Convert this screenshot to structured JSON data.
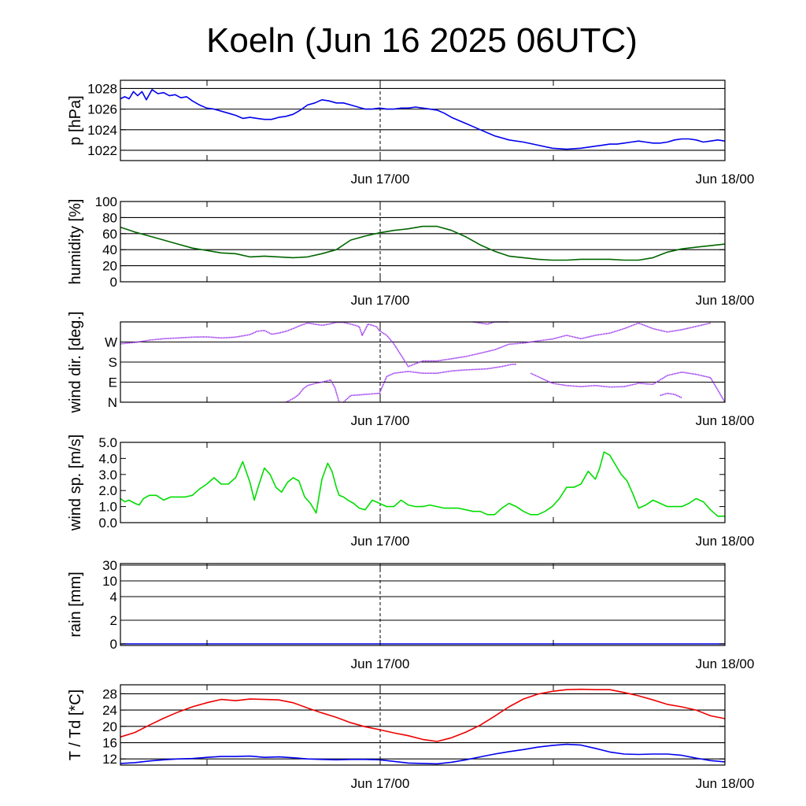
{
  "title": "Koeln (Jun 16 2025 06UTC)",
  "x_ticks": [
    "Jun 17/00",
    "Jun 18/00"
  ],
  "chart_data": [
    {
      "type": "line",
      "ylabel": "p [hPa]",
      "ylim": [
        1021,
        1028.8
      ],
      "ticks": [
        1022,
        1024,
        1026,
        1028
      ],
      "tick_labels": [
        "1022",
        "1024",
        "1026",
        "1028"
      ],
      "grid": [
        1022,
        1024,
        1026,
        1028
      ],
      "xlim": [
        0,
        42
      ],
      "series": [
        {
          "color": "#0000ee",
          "x": [
            0,
            0.3,
            0.6,
            0.9,
            1.2,
            1.5,
            1.8,
            2.2,
            2.6,
            3,
            3.4,
            3.8,
            4.2,
            4.6,
            5,
            5.5,
            6,
            6.5,
            7,
            7.5,
            8,
            8.5,
            9,
            9.5,
            10,
            10.5,
            11,
            11.5,
            12,
            12.5,
            13,
            13.5,
            14,
            14.5,
            15,
            15.5,
            16,
            16.5,
            17,
            17.5,
            18,
            18.5,
            19,
            19.5,
            20,
            20.5,
            21,
            21.5,
            22,
            22.5,
            23,
            23.5,
            24,
            24.5,
            25,
            26,
            27,
            28,
            29,
            30,
            31,
            32,
            33,
            33.5,
            34,
            34.5,
            35,
            35.5,
            36,
            36.5,
            37,
            37.5,
            38,
            38.5,
            39,
            39.5,
            40,
            40.5,
            41,
            41.5,
            42
          ],
          "values": [
            1027.0,
            1027.2,
            1027.0,
            1027.7,
            1027.3,
            1027.7,
            1026.9,
            1027.9,
            1027.5,
            1027.6,
            1027.3,
            1027.4,
            1027.1,
            1027.2,
            1026.8,
            1026.4,
            1026.1,
            1026.0,
            1025.8,
            1025.6,
            1025.4,
            1025.1,
            1025.2,
            1025.1,
            1025.0,
            1025.0,
            1025.2,
            1025.3,
            1025.5,
            1025.9,
            1026.4,
            1026.6,
            1026.9,
            1026.8,
            1026.6,
            1026.6,
            1026.4,
            1026.2,
            1026.0,
            1026.0,
            1026.1,
            1026.0,
            1026.0,
            1026.1,
            1026.1,
            1026.2,
            1026.1,
            1026.0,
            1025.9,
            1025.6,
            1025.2,
            1024.9,
            1024.6,
            1024.3,
            1024.0,
            1023.4,
            1023.0,
            1022.8,
            1022.5,
            1022.2,
            1022.1,
            1022.2,
            1022.4,
            1022.5,
            1022.6,
            1022.6,
            1022.7,
            1022.8,
            1022.9,
            1022.8,
            1022.7,
            1022.7,
            1022.8,
            1023.0,
            1023.1,
            1023.1,
            1023.0,
            1022.8,
            1022.9,
            1023.0,
            1022.9
          ]
        }
      ]
    },
    {
      "type": "line",
      "ylabel": "humidity [%]",
      "ylim": [
        0,
        100
      ],
      "ticks": [
        0,
        20,
        40,
        60,
        80,
        100
      ],
      "tick_labels": [
        "0",
        "20",
        "40",
        "60",
        "80",
        "100"
      ],
      "grid": [
        20,
        40,
        60,
        80
      ],
      "xlim": [
        0,
        42
      ],
      "series": [
        {
          "color": "#006600",
          "x": [
            0,
            1,
            2,
            3,
            4,
            5,
            6,
            7,
            8,
            9,
            10,
            11,
            12,
            13,
            14,
            15,
            16,
            17,
            18,
            19,
            20,
            21,
            22,
            23,
            24,
            25,
            26,
            27,
            28,
            29,
            30,
            31,
            32,
            33,
            34,
            35,
            36,
            37,
            38,
            39,
            40,
            41,
            42
          ],
          "values": [
            68,
            62,
            57,
            52,
            47,
            42,
            39,
            36,
            35,
            31,
            32,
            31,
            30,
            31,
            35,
            40,
            52,
            57,
            61,
            64,
            66,
            69,
            69,
            64,
            56,
            46,
            38,
            32,
            30,
            28,
            27,
            27,
            28,
            28,
            28,
            27,
            27,
            30,
            37,
            41,
            43,
            45,
            47
          ]
        }
      ]
    },
    {
      "type": "scatter",
      "ylabel": "wind dir. [deg.]",
      "ylim": [
        0,
        360
      ],
      "ticks": [
        0,
        90,
        180,
        270
      ],
      "tick_labels": [
        "N",
        "E",
        "S",
        "W"
      ],
      "grid": [
        90,
        180,
        270
      ],
      "xlim": [
        0,
        42
      ],
      "series": [
        {
          "color": "#9933ee",
          "segments": [
            {
              "x": [
                0,
                1,
                2,
                3,
                4,
                5,
                6,
                7,
                8,
                9,
                9.5,
                10,
                10.5,
                11,
                11.5,
                12,
                12.5,
                13,
                13.5,
                14,
                14.5,
                15,
                15.5,
                16,
                16.3,
                16.6,
                16.8,
                17,
                17.2,
                17.5,
                17.8,
                18,
                18.5,
                19,
                20,
                21,
                22,
                23,
                24,
                25,
                26,
                27,
                28,
                29,
                30,
                31,
                32,
                33,
                34,
                35,
                36,
                37,
                38,
                39,
                40,
                41
              ],
              "values": [
                262,
                268,
                278,
                285,
                288,
                292,
                293,
                288,
                292,
                303,
                318,
                322,
                305,
                310,
                318,
                330,
                344,
                355,
                350,
                345,
                350,
                358,
                358,
                350,
                345,
                338,
                300,
                325,
                350,
                345,
                338,
                320,
                300,
                262,
                160,
                185,
                185,
                195,
                205,
                220,
                235,
                260,
                265,
                275,
                283,
                300,
                285,
                300,
                310,
                330,
                355,
                330,
                315,
                325,
                340,
                355
              ]
            },
            {
              "x": [
                11.5,
                11.8,
                12.1,
                12.4,
                12.7,
                13.0,
                13.3,
                13.6,
                14.0,
                14.3,
                14.6,
                14.9,
                15.2
              ],
              "values": [
                0,
                10,
                20,
                35,
                60,
                75,
                80,
                85,
                90,
                95,
                100,
                65,
                0
              ]
            },
            {
              "x": [
                15.5,
                16,
                17,
                18,
                18.5,
                19,
                20,
                21,
                22,
                23,
                24,
                25,
                25.5,
                26,
                26.5,
                27.2,
                27.5
              ],
              "values": [
                0,
                30,
                35,
                40,
                115,
                130,
                138,
                130,
                130,
                140,
                145,
                148,
                150,
                155,
                160,
                170,
                170
              ]
            },
            {
              "x": [
                28.5,
                29,
                30,
                31,
                32,
                33,
                34,
                35,
                36,
                37,
                38,
                39,
                40,
                41,
                42
              ],
              "values": [
                130,
                115,
                85,
                75,
                70,
                75,
                68,
                70,
                85,
                80,
                120,
                135,
                125,
                110,
                0
              ]
            },
            {
              "x": [
                24.5,
                25,
                25.5,
                26,
                27
              ],
              "values": [
                360,
                355,
                350,
                360,
                360
              ]
            },
            {
              "x": [
                37.5,
                38,
                38.5,
                39
              ],
              "values": [
                30,
                40,
                35,
                20
              ]
            }
          ]
        }
      ]
    },
    {
      "type": "line",
      "ylabel": "wind sp. [m/s]",
      "ylim": [
        0,
        5
      ],
      "ticks": [
        0,
        1,
        2,
        3,
        4,
        5
      ],
      "tick_labels": [
        "0.0",
        "1.0",
        "2.0",
        "3.0",
        "4.0",
        "5.0"
      ],
      "grid": [],
      "xlim": [
        0,
        42
      ],
      "series": [
        {
          "color": "#00dd00",
          "x": [
            0,
            0.3,
            0.6,
            1,
            1.3,
            1.6,
            2,
            2.5,
            3,
            3.5,
            4,
            4.5,
            5,
            5.5,
            6,
            6.5,
            7,
            7.5,
            8,
            8.5,
            9,
            9.3,
            9.6,
            10,
            10.4,
            10.8,
            11.2,
            11.6,
            12,
            12.4,
            12.8,
            13.2,
            13.6,
            14,
            14.4,
            14.7,
            15,
            15.2,
            15.5,
            15.8,
            16.2,
            16.6,
            17,
            17.5,
            18,
            18.5,
            19,
            19.5,
            20,
            20.5,
            21,
            21.5,
            22,
            22.5,
            23,
            23.5,
            24,
            24.5,
            25,
            25.5,
            26,
            26.5,
            27,
            27.5,
            28,
            28.5,
            29,
            29.5,
            30,
            30.5,
            31,
            31.5,
            32,
            32.5,
            33,
            33.3,
            33.6,
            34,
            34.4,
            34.8,
            35.2,
            35.6,
            36,
            36.5,
            37,
            37.5,
            38,
            38.5,
            39,
            39.5,
            40,
            40.5,
            41,
            41.5,
            42
          ],
          "values": [
            1.5,
            1.3,
            1.4,
            1.2,
            1.1,
            1.5,
            1.7,
            1.7,
            1.4,
            1.6,
            1.6,
            1.6,
            1.7,
            2.1,
            2.4,
            2.8,
            2.4,
            2.4,
            2.8,
            3.8,
            2.5,
            1.4,
            2.3,
            3.4,
            3.0,
            2.2,
            1.9,
            2.5,
            2.8,
            2.6,
            1.6,
            1.2,
            0.6,
            2.7,
            3.7,
            3.2,
            2.2,
            1.7,
            1.6,
            1.4,
            1.2,
            0.9,
            0.8,
            1.4,
            1.2,
            1.0,
            1.0,
            1.4,
            1.1,
            1.0,
            1.0,
            1.1,
            1.0,
            0.9,
            0.9,
            0.9,
            0.8,
            0.7,
            0.7,
            0.5,
            0.5,
            0.9,
            1.2,
            1.0,
            0.7,
            0.5,
            0.5,
            0.7,
            1.0,
            1.5,
            2.2,
            2.2,
            2.4,
            3.2,
            2.7,
            3.4,
            4.4,
            4.2,
            3.6,
            3.0,
            2.6,
            1.8,
            0.9,
            1.1,
            1.4,
            1.2,
            1.0,
            1.0,
            1.0,
            1.2,
            1.5,
            1.3,
            0.8,
            0.4,
            0.4
          ]
        }
      ]
    },
    {
      "type": "line",
      "ylabel": "rain [mm]",
      "ylim": [
        0,
        30
      ],
      "ticks": [
        0,
        2,
        4,
        10,
        30
      ],
      "tick_labels": [
        "0",
        "2",
        "4",
        "10",
        "30"
      ],
      "grid": [
        0,
        2,
        4,
        10,
        30
      ],
      "xlim": [
        0,
        42
      ],
      "series": [
        {
          "color": "#0000ee",
          "x": [
            0,
            42
          ],
          "values": [
            0,
            0
          ]
        }
      ]
    },
    {
      "type": "line",
      "ylabel": "T / Td [*C]",
      "ylim": [
        10.5,
        30.2
      ],
      "ticks": [
        12,
        16,
        20,
        24,
        28
      ],
      "tick_labels": [
        "12",
        "16",
        "20",
        "24",
        "28"
      ],
      "grid": [
        12,
        16,
        20,
        24,
        28
      ],
      "xlim": [
        0,
        42
      ],
      "series": [
        {
          "color": "#ee0000",
          "x": [
            0,
            1,
            2,
            3,
            4,
            5,
            6,
            7,
            8,
            9,
            10,
            11,
            12,
            13,
            14,
            15,
            16,
            17,
            18,
            19,
            20,
            21,
            22,
            23,
            24,
            25,
            26,
            27,
            28,
            29,
            30,
            31,
            32,
            33,
            34,
            35,
            36,
            37,
            38,
            39,
            40,
            41,
            42
          ],
          "values": [
            17.4,
            18.5,
            20.3,
            22.0,
            23.5,
            24.8,
            25.8,
            26.6,
            26.3,
            26.7,
            26.6,
            26.5,
            25.8,
            24.5,
            23.3,
            22.2,
            20.9,
            19.9,
            19.2,
            18.4,
            17.7,
            16.8,
            16.3,
            17.2,
            18.6,
            20.3,
            22.5,
            24.8,
            26.7,
            27.9,
            28.6,
            29.0,
            29.1,
            29.0,
            29.0,
            28.3,
            27.5,
            26.5,
            25.4,
            24.8,
            24.0,
            22.6,
            21.9
          ]
        },
        {
          "color": "#0000ee",
          "x": [
            0,
            1,
            2,
            3,
            4,
            5,
            6,
            7,
            8,
            9,
            10,
            11,
            12,
            13,
            14,
            15,
            16,
            17,
            18,
            19,
            20,
            21,
            22,
            23,
            24,
            25,
            26,
            27,
            28,
            29,
            30,
            31,
            32,
            33,
            34,
            35,
            36,
            37,
            38,
            39,
            40,
            41,
            42
          ],
          "values": [
            10.9,
            11.1,
            11.5,
            11.8,
            12.0,
            12.1,
            12.4,
            12.6,
            12.6,
            12.7,
            12.4,
            12.5,
            12.3,
            12.0,
            11.9,
            11.8,
            11.9,
            11.9,
            11.8,
            11.4,
            11.0,
            10.9,
            10.8,
            11.2,
            11.8,
            12.5,
            13.2,
            13.8,
            14.3,
            14.9,
            15.3,
            15.6,
            15.4,
            14.6,
            13.7,
            13.2,
            13.1,
            13.2,
            13.2,
            12.9,
            12.2,
            11.6,
            11.3
          ]
        }
      ]
    }
  ]
}
